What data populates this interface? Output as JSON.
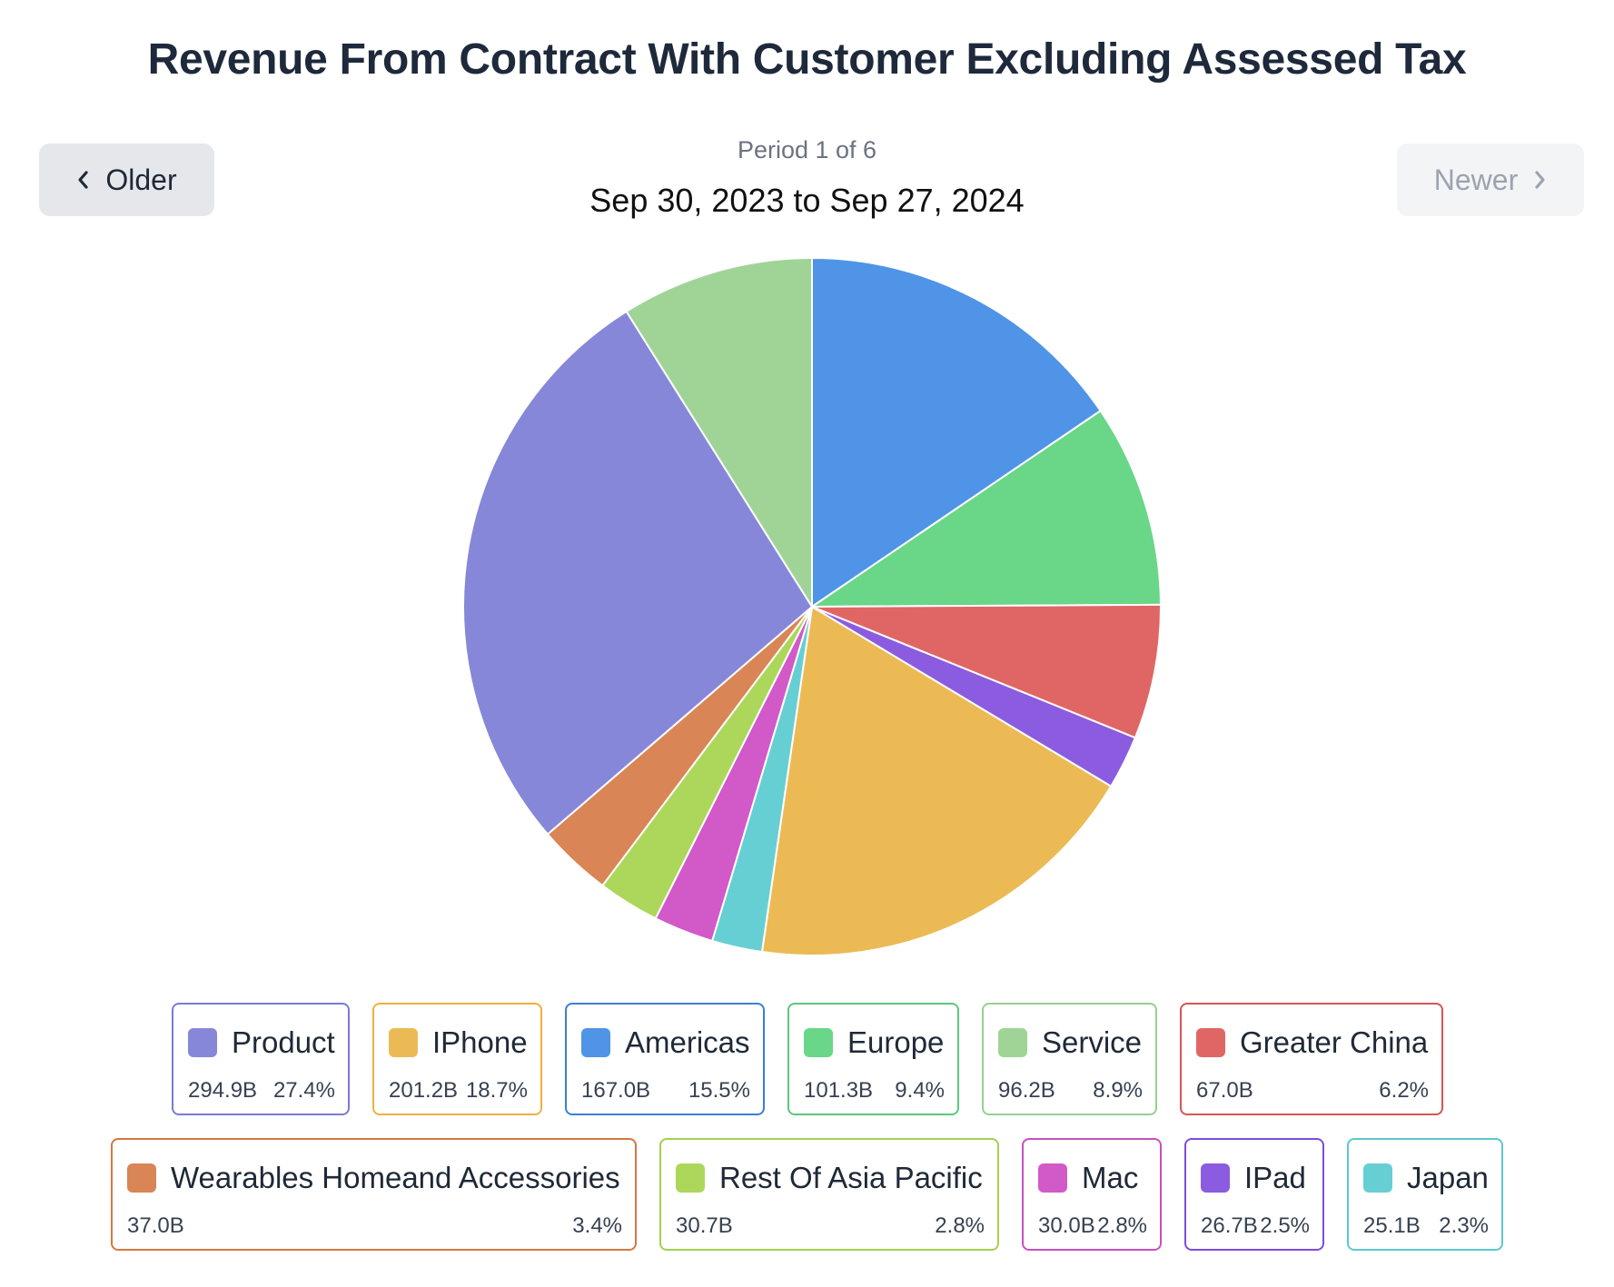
{
  "chart_data": {
    "type": "pie",
    "title": "Revenue From Contract With Customer Excluding Assessed Tax",
    "period_label": "Period 1 of 6",
    "period_range": "Sep 30, 2023 to Sep 27, 2024",
    "slices": [
      {
        "name": "Americas",
        "value": 167.0,
        "value_label": "167.0B",
        "percent_label": "15.5%",
        "color": "#4f94e6",
        "border": "#3b7fd6"
      },
      {
        "name": "Europe",
        "value": 101.3,
        "value_label": "101.3B",
        "percent_label": "9.4%",
        "color": "#69d688",
        "border": "#5cc87a"
      },
      {
        "name": "Greater China",
        "value": 67.0,
        "value_label": "67.0B",
        "percent_label": "6.2%",
        "color": "#e06666",
        "border": "#d95454"
      },
      {
        "name": "IPad",
        "value": 26.7,
        "value_label": "26.7B",
        "percent_label": "2.5%",
        "color": "#8b5cdf",
        "border": "#7c4ddb"
      },
      {
        "name": "IPhone",
        "value": 201.2,
        "value_label": "201.2B",
        "percent_label": "18.7%",
        "color": "#ecba55",
        "border": "#f0b13e"
      },
      {
        "name": "Japan",
        "value": 25.1,
        "value_label": "25.1B",
        "percent_label": "2.3%",
        "color": "#66cfd4",
        "border": "#5cc8cc"
      },
      {
        "name": "Mac",
        "value": 30.0,
        "value_label": "30.0B",
        "percent_label": "2.8%",
        "color": "#d259c8",
        "border": "#c94fc0"
      },
      {
        "name": "Rest Of Asia Pacific",
        "value": 30.7,
        "value_label": "30.7B",
        "percent_label": "2.8%",
        "color": "#acd75b",
        "border": "#a3d14f"
      },
      {
        "name": "Wearables Homeand Accessories",
        "value": 37.0,
        "value_label": "37.0B",
        "percent_label": "3.4%",
        "color": "#d98556",
        "border": "#d6773f"
      },
      {
        "name": "Product",
        "value": 294.9,
        "value_label": "294.9B",
        "percent_label": "27.4%",
        "color": "#8787d9",
        "border": "#7a7ad8"
      },
      {
        "name": "Service",
        "value": 96.2,
        "value_label": "96.2B",
        "percent_label": "8.9%",
        "color": "#a0d497",
        "border": "#98d090"
      }
    ],
    "legend_rows": [
      [
        "Product",
        "IPhone",
        "Americas",
        "Europe",
        "Service",
        "Greater China"
      ],
      [
        "Wearables Homeand Accessories",
        "Rest Of Asia Pacific",
        "Mac",
        "IPad",
        "Japan"
      ]
    ]
  },
  "nav": {
    "older_label": "Older",
    "newer_label": "Newer"
  }
}
